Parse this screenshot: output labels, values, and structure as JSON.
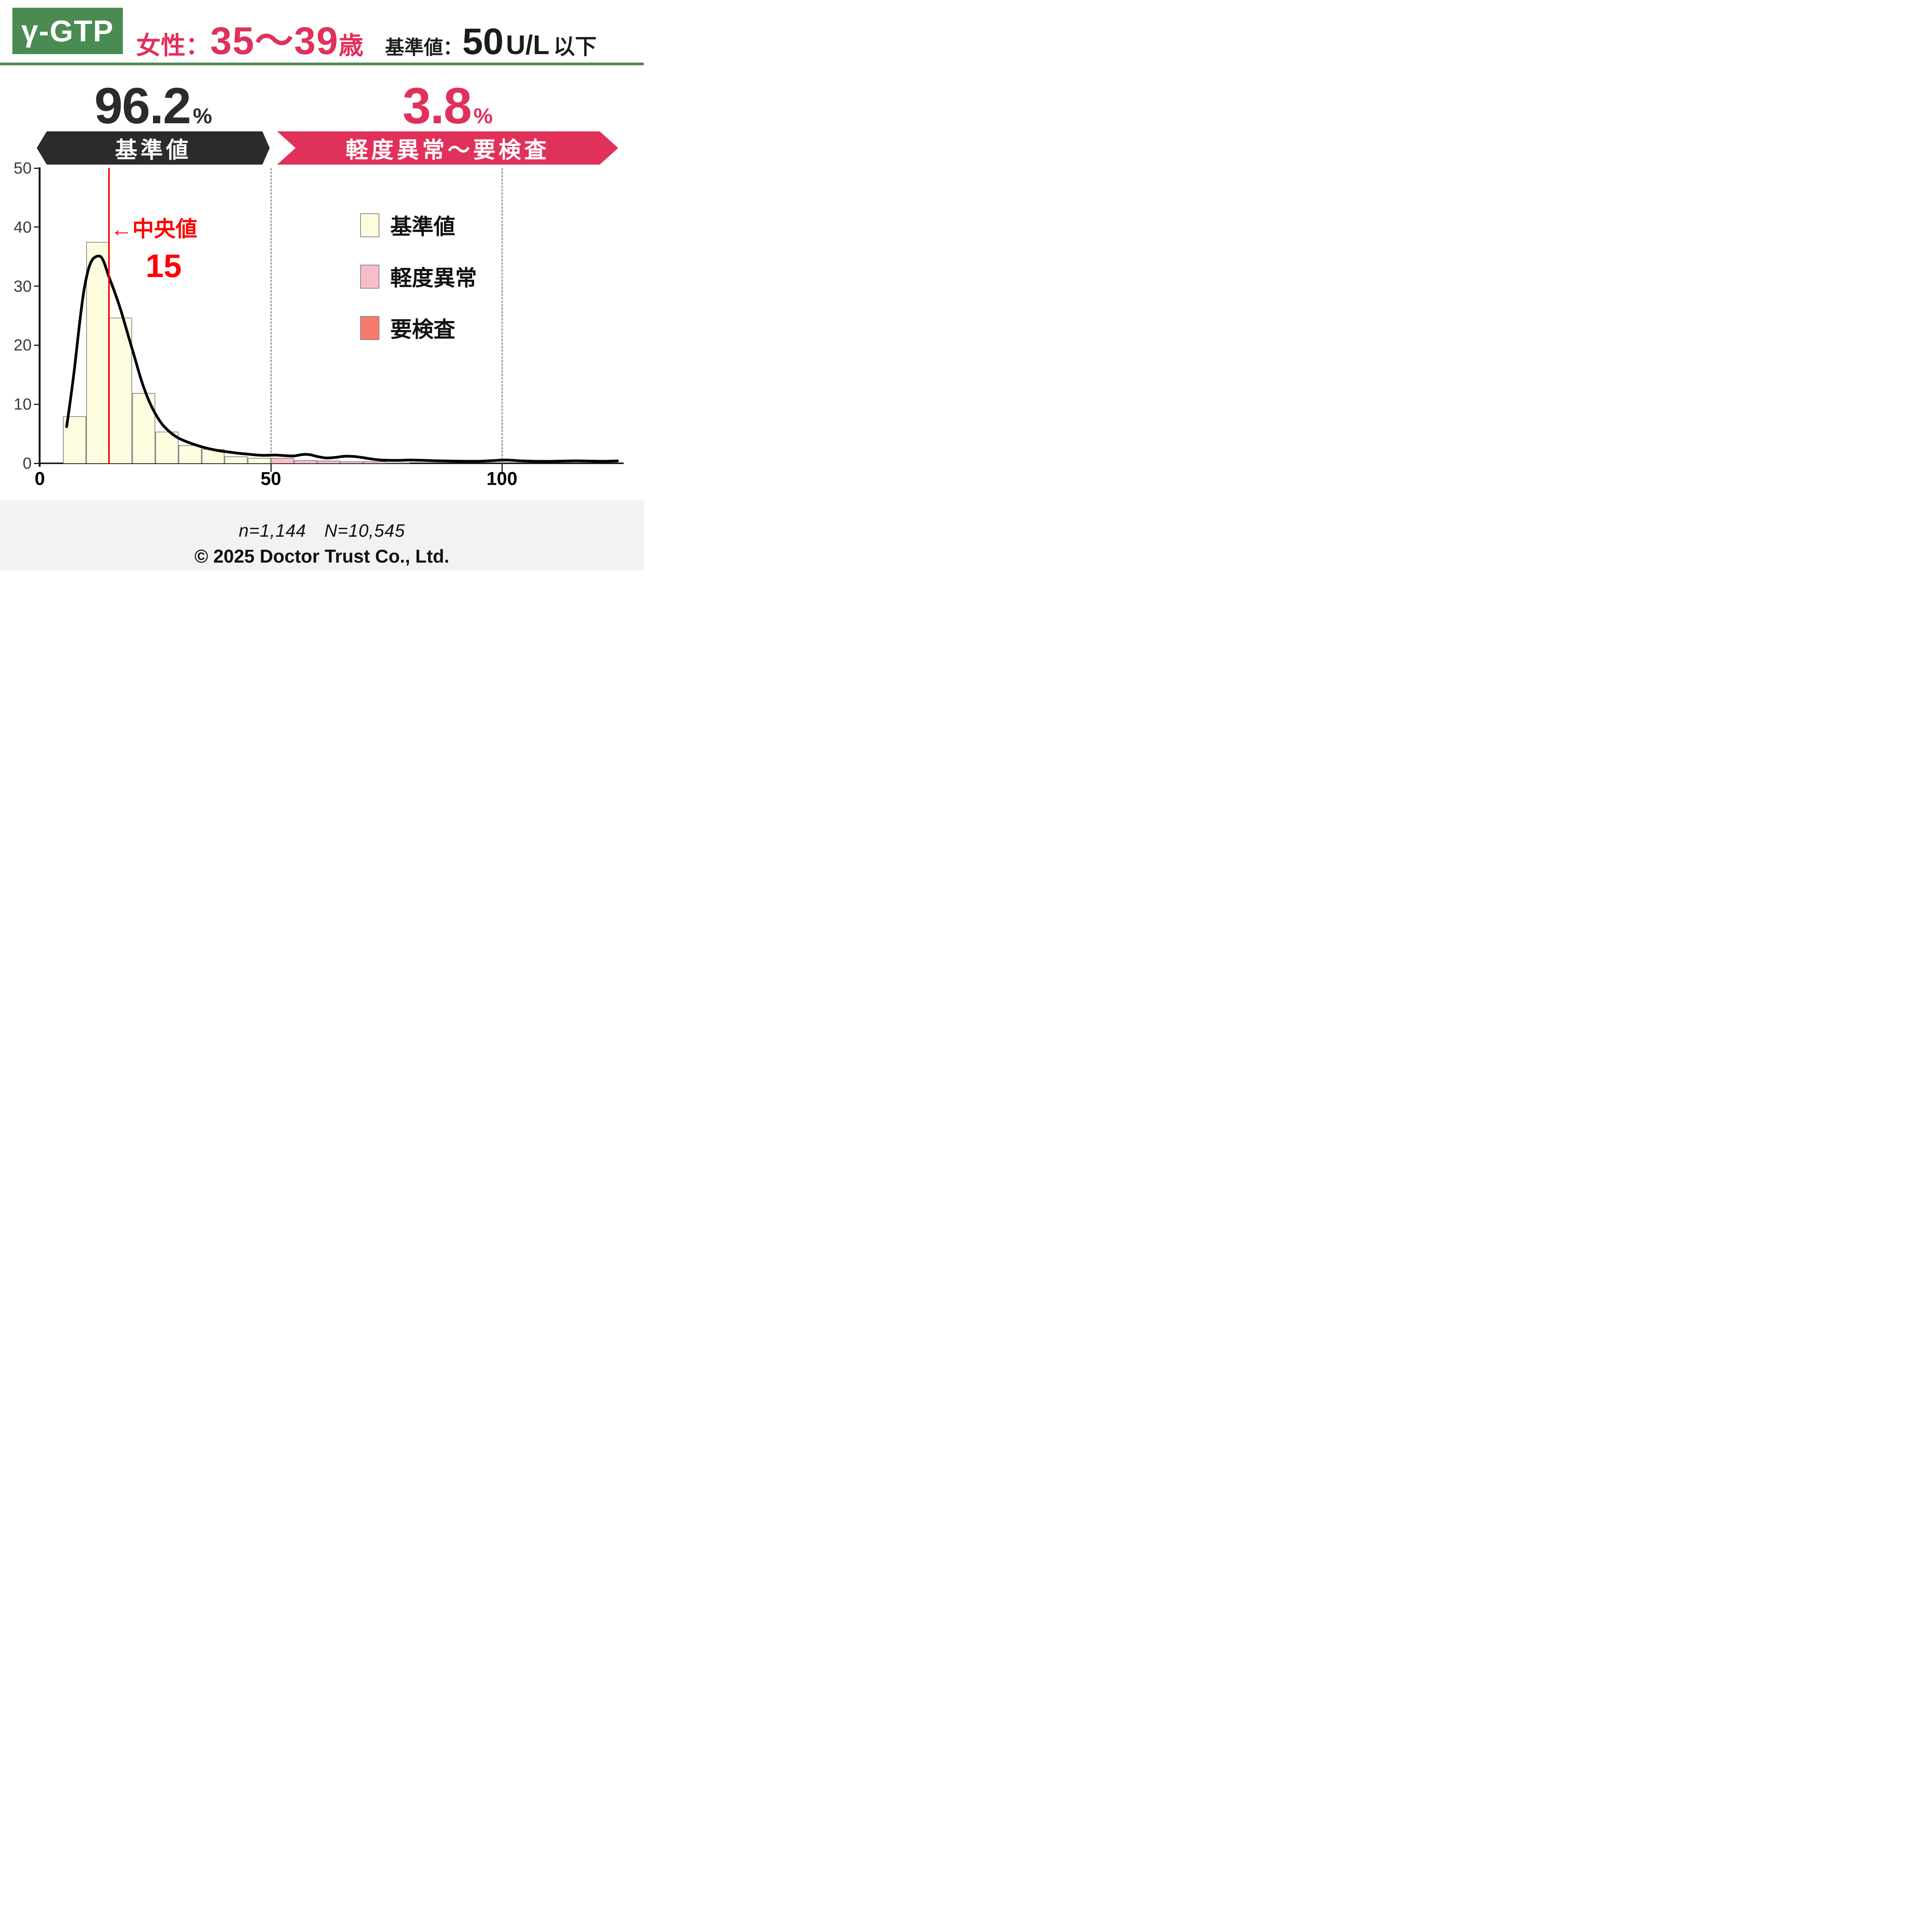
{
  "header": {
    "badge": "γ-GTP",
    "group_prefix": "女性：",
    "group_range": "35～39",
    "group_suffix": "歳",
    "standard_label": "基準値：",
    "standard_value": "50",
    "standard_unit": "U/L",
    "standard_suffix": "以下"
  },
  "summary": {
    "normal_pct": "96.2",
    "normal_pct_unit": "%",
    "normal_band_label": "基準値",
    "abnormal_pct": "3.8",
    "abnormal_pct_unit": "%",
    "abnormal_band_label": "軽度異常～要検査"
  },
  "chart_data": {
    "type": "bar",
    "subtype": "histogram_with_density_curve",
    "title": "",
    "xlabel": "",
    "ylabel": "",
    "xlim": [
      0,
      126
    ],
    "ylim": [
      0,
      50
    ],
    "yticks": [
      0,
      10,
      20,
      30,
      40,
      50
    ],
    "xticks": [
      {
        "value": 0,
        "label": "0"
      },
      {
        "value": 50,
        "label": "50"
      },
      {
        "value": 100,
        "label": "100"
      }
    ],
    "grid": false,
    "bin_width": 5,
    "bins": [
      {
        "x": 5,
        "count": 8,
        "category": "normal"
      },
      {
        "x": 10,
        "count": 37.5,
        "category": "normal"
      },
      {
        "x": 15,
        "count": 24.7,
        "category": "normal"
      },
      {
        "x": 20,
        "count": 11.9,
        "category": "normal"
      },
      {
        "x": 25,
        "count": 5.4,
        "category": "normal"
      },
      {
        "x": 30,
        "count": 3.1,
        "category": "normal"
      },
      {
        "x": 35,
        "count": 2.4,
        "category": "normal"
      },
      {
        "x": 40,
        "count": 1.2,
        "category": "normal"
      },
      {
        "x": 45,
        "count": 0.9,
        "category": "normal"
      },
      {
        "x": 50,
        "count": 0.9,
        "category": "mild"
      },
      {
        "x": 55,
        "count": 0.5,
        "category": "mild"
      },
      {
        "x": 60,
        "count": 0.45,
        "category": "mild"
      },
      {
        "x": 65,
        "count": 0.35,
        "category": "mild"
      },
      {
        "x": 70,
        "count": 0.3,
        "category": "mild"
      },
      {
        "x": 75,
        "count": 0.15,
        "category": "mild"
      }
    ],
    "density_curve": [
      [
        5.8,
        6.2
      ],
      [
        6.5,
        10
      ],
      [
        7.5,
        16
      ],
      [
        8.5,
        23
      ],
      [
        9.5,
        29
      ],
      [
        10.5,
        32.8
      ],
      [
        11.5,
        34.6
      ],
      [
        12.9,
        35.1
      ],
      [
        13.8,
        34.2
      ],
      [
        15,
        31.5
      ],
      [
        16.2,
        29
      ],
      [
        17.5,
        26
      ],
      [
        19,
        22
      ],
      [
        20.5,
        18
      ],
      [
        22,
        14
      ],
      [
        23.5,
        10.8
      ],
      [
        25,
        8.4
      ],
      [
        26.5,
        6.6
      ],
      [
        28,
        5.4
      ],
      [
        29.5,
        4.5
      ],
      [
        31,
        3.9
      ],
      [
        33,
        3.3
      ],
      [
        35,
        2.8
      ],
      [
        37,
        2.4
      ],
      [
        39,
        2.1
      ],
      [
        41,
        1.9
      ],
      [
        43,
        1.7
      ],
      [
        45,
        1.55
      ],
      [
        47,
        1.4
      ],
      [
        49,
        1.35
      ],
      [
        51,
        1.4
      ],
      [
        53,
        1.3
      ],
      [
        55,
        1.25
      ],
      [
        57,
        1.5
      ],
      [
        58.5,
        1.45
      ],
      [
        60,
        1.15
      ],
      [
        62,
        0.9
      ],
      [
        64,
        1.0
      ],
      [
        66,
        1.2
      ],
      [
        68,
        1.15
      ],
      [
        70,
        0.95
      ],
      [
        72,
        0.7
      ],
      [
        74,
        0.55
      ],
      [
        76,
        0.5
      ],
      [
        78,
        0.5
      ],
      [
        80,
        0.55
      ],
      [
        83,
        0.5
      ],
      [
        86,
        0.42
      ],
      [
        89,
        0.38
      ],
      [
        92,
        0.35
      ],
      [
        95,
        0.35
      ],
      [
        98,
        0.45
      ],
      [
        100,
        0.55
      ],
      [
        102,
        0.52
      ],
      [
        104,
        0.42
      ],
      [
        107,
        0.35
      ],
      [
        110,
        0.33
      ],
      [
        113,
        0.38
      ],
      [
        116,
        0.42
      ],
      [
        119,
        0.38
      ],
      [
        122,
        0.34
      ],
      [
        125,
        0.4
      ]
    ],
    "median": {
      "value": 15,
      "arrow_label": "←中央値",
      "value_label": "15"
    },
    "reference_lines": [
      50,
      100
    ],
    "legend_position": "upper right",
    "legend": [
      {
        "key": "normal",
        "label": "基準値",
        "color": "#FDFCDF"
      },
      {
        "key": "mild",
        "label": "軽度異常",
        "color": "#F9BDC9"
      },
      {
        "key": "exam",
        "label": "要検査",
        "color": "#F6796B"
      }
    ]
  },
  "footer": {
    "sample_text": "n=1,144　N=10,545",
    "copyright": "© 2025 Doctor Trust Co., Ltd."
  },
  "colors": {
    "accent_green": "#4A8B51",
    "accent_pink": "#E0315B",
    "banner_dark": "#2B2B2B",
    "median_red": "#FF0000",
    "curve_black": "#000000",
    "axis_color": "#1A1A1A",
    "footer_bg": "#F2F2F2"
  }
}
